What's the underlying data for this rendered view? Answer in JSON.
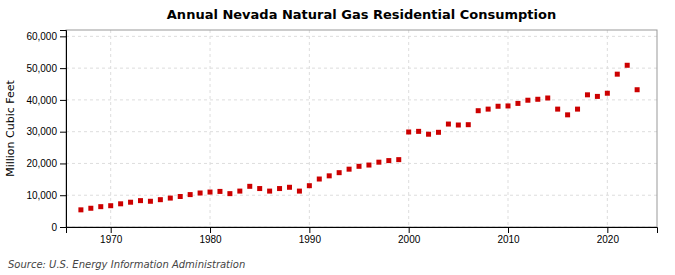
{
  "chart_data": {
    "type": "scatter",
    "title": "Annual Nevada Natural Gas Residential Consumption",
    "ylabel": "Million Cubic Feet",
    "annotations": [
      "Source: U.S. Energy Information Administration"
    ],
    "x": [
      1967,
      1968,
      1969,
      1970,
      1971,
      1972,
      1973,
      1974,
      1975,
      1976,
      1977,
      1978,
      1979,
      1980,
      1981,
      1982,
      1983,
      1984,
      1985,
      1986,
      1987,
      1988,
      1989,
      1990,
      1991,
      1992,
      1993,
      1994,
      1995,
      1996,
      1997,
      1998,
      1999,
      2000,
      2001,
      2002,
      2003,
      2004,
      2005,
      2006,
      2007,
      2008,
      2009,
      2010,
      2011,
      2012,
      2013,
      2014,
      2015,
      2016,
      2017,
      2018,
      2019,
      2020,
      2021,
      2022,
      2023
    ],
    "values": [
      5400,
      5900,
      6400,
      6700,
      7300,
      7800,
      8300,
      8100,
      8600,
      9100,
      9600,
      10200,
      10700,
      11000,
      11200,
      10500,
      11300,
      12800,
      12100,
      11300,
      12100,
      12500,
      11300,
      13000,
      15100,
      16100,
      17100,
      18200,
      19100,
      19500,
      20400,
      20900,
      21200,
      29900,
      30100,
      29200,
      29800,
      32400,
      32100,
      32200,
      36600,
      37100,
      38000,
      38100,
      38900,
      39900,
      40200,
      40600,
      37100,
      35300,
      37100,
      41600,
      41100,
      42100,
      48100,
      50900,
      43200
    ],
    "color": "#cc0000",
    "marker": "square",
    "grid": true,
    "xlim": [
      1965.5,
      2025
    ],
    "xticks": [
      1970,
      1980,
      1990,
      2000,
      2010,
      2020
    ],
    "ylim": [
      0,
      62000
    ],
    "yticks": [
      0,
      {
        "value": 10000,
        "label": "10,000"
      },
      {
        "value": 20000,
        "label": "20,000"
      },
      {
        "value": 30000,
        "label": "30,000"
      },
      {
        "value": 40000,
        "label": "40,000"
      },
      {
        "value": 50000,
        "label": "50,000"
      },
      {
        "value": 60000,
        "label": "60,000"
      }
    ]
  }
}
